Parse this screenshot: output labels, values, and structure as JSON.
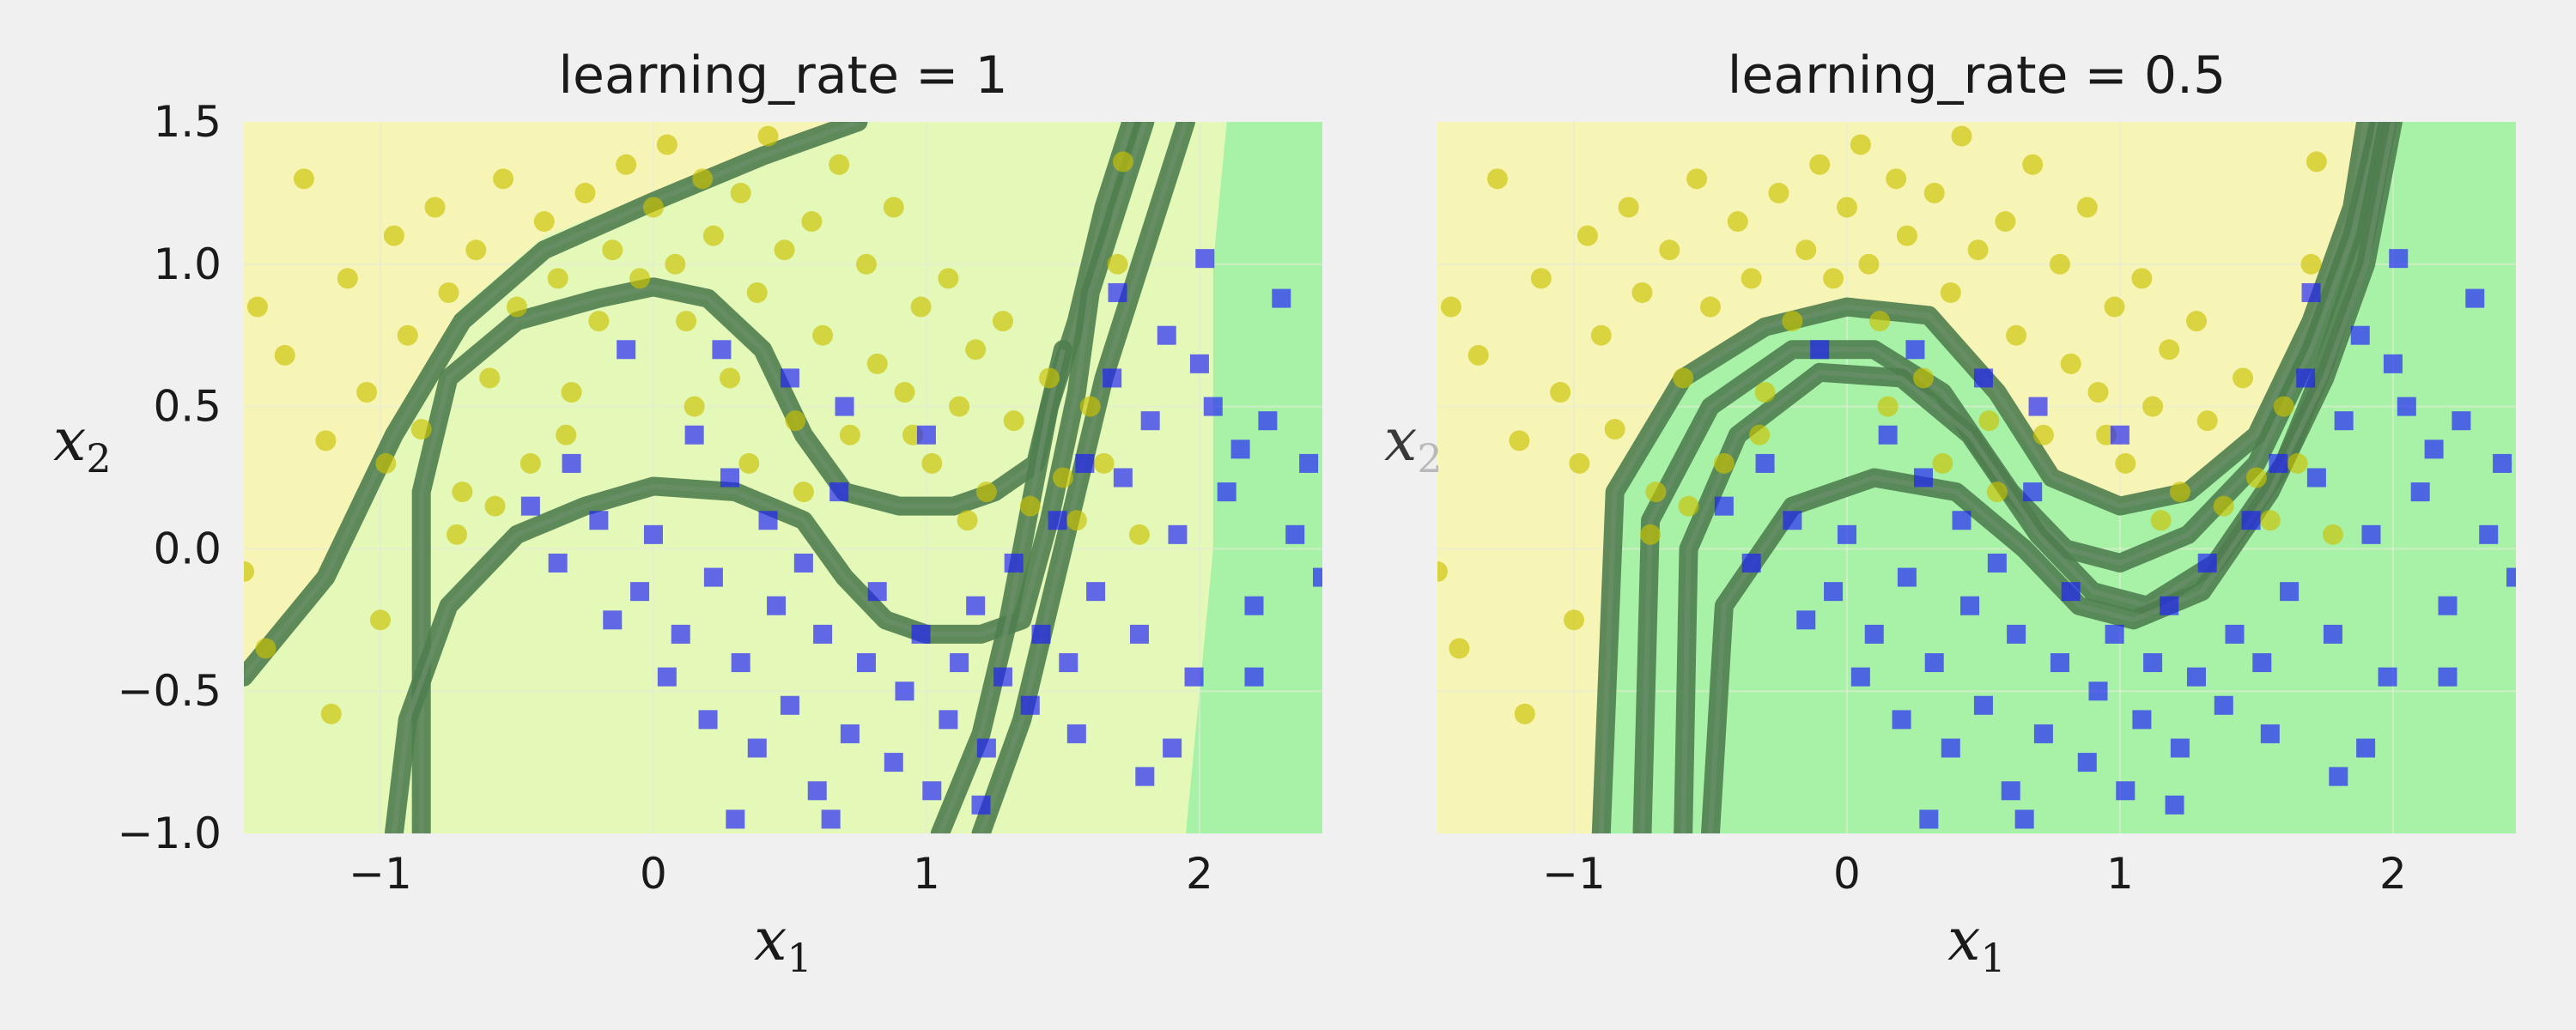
{
  "chart_data": [
    {
      "type": "scatter",
      "title": "learning_rate = 1",
      "xlabel": "x1",
      "ylabel": "x2",
      "xlim": [
        -1.5,
        2.45
      ],
      "ylim": [
        -1.0,
        1.5
      ],
      "xticks": [
        {
          "v": -1,
          "label": "−1"
        },
        {
          "v": 0,
          "label": "0"
        },
        {
          "v": 1,
          "label": "1"
        },
        {
          "v": 2,
          "label": "2"
        }
      ],
      "yticks": [
        {
          "v": 1.5,
          "label": "1.5"
        },
        {
          "v": 1.0,
          "label": "1.0"
        },
        {
          "v": 0.5,
          "label": "0.5"
        },
        {
          "v": 0.0,
          "label": "0.0"
        },
        {
          "v": -0.5,
          "label": "−0.5"
        },
        {
          "v": -1.0,
          "label": "−1.0"
        }
      ],
      "grid": true,
      "regions": [
        {
          "class": 0,
          "color": "#f7f5b6",
          "boundary": [
            [
              -1.5,
              -0.4
            ],
            [
              -1.2,
              -0.05
            ],
            [
              -0.95,
              0.45
            ],
            [
              -0.7,
              0.85
            ],
            [
              -0.4,
              1.1
            ],
            [
              0,
              1.25
            ],
            [
              0.4,
              1.4
            ],
            [
              0.7,
              1.5
            ]
          ]
        },
        {
          "class": 1,
          "color": "#a8f2a8",
          "boundary": [
            [
              1.95,
              -1.0
            ],
            [
              2.05,
              0.0
            ],
            [
              2.05,
              1.0
            ],
            [
              2.1,
              1.5
            ]
          ]
        }
      ],
      "contour_lines": [
        [
          [
            -1.5,
            -0.45
          ],
          [
            -1.2,
            -0.1
          ],
          [
            -0.95,
            0.4
          ],
          [
            -0.7,
            0.8
          ],
          [
            -0.4,
            1.05
          ],
          [
            0,
            1.22
          ],
          [
            0.4,
            1.38
          ],
          [
            0.75,
            1.5
          ]
        ],
        [
          [
            -0.85,
            -1.0
          ],
          [
            -0.85,
            0.2
          ],
          [
            -0.75,
            0.6
          ],
          [
            -0.5,
            0.8
          ],
          [
            -0.2,
            0.88
          ],
          [
            0,
            0.92
          ],
          [
            0.2,
            0.88
          ],
          [
            0.4,
            0.7
          ],
          [
            0.55,
            0.4
          ],
          [
            0.7,
            0.2
          ],
          [
            0.9,
            0.15
          ],
          [
            1.1,
            0.15
          ],
          [
            1.25,
            0.2
          ],
          [
            1.4,
            0.3
          ],
          [
            1.45,
            0.5
          ],
          [
            1.55,
            0.8
          ],
          [
            1.65,
            1.2
          ],
          [
            1.75,
            1.5
          ]
        ],
        [
          [
            -0.95,
            -1.0
          ],
          [
            -0.9,
            -0.6
          ],
          [
            -0.75,
            -0.2
          ],
          [
            -0.5,
            0.05
          ],
          [
            -0.25,
            0.15
          ],
          [
            0,
            0.22
          ],
          [
            0.3,
            0.2
          ],
          [
            0.55,
            0.1
          ],
          [
            0.7,
            -0.1
          ],
          [
            0.85,
            -0.25
          ],
          [
            1.0,
            -0.3
          ],
          [
            1.2,
            -0.3
          ],
          [
            1.35,
            -0.25
          ],
          [
            1.45,
            0.1
          ],
          [
            1.55,
            0.55
          ],
          [
            1.6,
            0.9
          ],
          [
            1.7,
            1.2
          ],
          [
            1.8,
            1.5
          ]
        ],
        [
          [
            1.2,
            -1.0
          ],
          [
            1.35,
            -0.6
          ],
          [
            1.45,
            -0.2
          ],
          [
            1.55,
            0.2
          ],
          [
            1.65,
            0.6
          ],
          [
            1.75,
            0.9
          ],
          [
            1.85,
            1.2
          ],
          [
            1.95,
            1.5
          ]
        ],
        [
          [
            1.05,
            -1.0
          ],
          [
            1.2,
            -0.65
          ],
          [
            1.3,
            -0.25
          ],
          [
            1.4,
            0.25
          ],
          [
            1.45,
            0.5
          ],
          [
            1.5,
            0.7
          ]
        ]
      ]
    },
    {
      "type": "scatter",
      "title": "learning_rate = 0.5",
      "xlabel": "x1",
      "ylabel": "x2",
      "xlim": [
        -1.5,
        2.45
      ],
      "ylim": [
        -1.0,
        1.5
      ],
      "xticks": [
        {
          "v": -1,
          "label": "−1"
        },
        {
          "v": 0,
          "label": "0"
        },
        {
          "v": 1,
          "label": "1"
        },
        {
          "v": 2,
          "label": "2"
        }
      ],
      "yticks": [],
      "grid": true,
      "regions": [
        {
          "class": 0,
          "color": "#f7f5b6",
          "boundary": [
            [
              -0.9,
              -1.0
            ],
            [
              -0.85,
              0.2
            ],
            [
              -0.6,
              0.6
            ],
            [
              -0.3,
              0.78
            ],
            [
              0,
              0.85
            ],
            [
              0.3,
              0.8
            ],
            [
              0.55,
              0.5
            ],
            [
              0.75,
              0.25
            ],
            [
              1.0,
              0.15
            ],
            [
              1.25,
              0.2
            ],
            [
              1.5,
              0.4
            ],
            [
              1.7,
              0.8
            ],
            [
              1.85,
              1.2
            ],
            [
              1.95,
              1.5
            ]
          ]
        },
        {
          "class": 1,
          "color": "#a8f2a8",
          "boundary": []
        }
      ],
      "contour_lines": [
        [
          [
            -0.9,
            -1.0
          ],
          [
            -0.85,
            0.2
          ],
          [
            -0.6,
            0.6
          ],
          [
            -0.3,
            0.78
          ],
          [
            0,
            0.85
          ],
          [
            0.3,
            0.82
          ],
          [
            0.55,
            0.55
          ],
          [
            0.75,
            0.25
          ],
          [
            1.0,
            0.15
          ],
          [
            1.25,
            0.2
          ],
          [
            1.5,
            0.4
          ],
          [
            1.7,
            0.8
          ],
          [
            1.85,
            1.2
          ],
          [
            1.9,
            1.5
          ]
        ],
        [
          [
            -0.75,
            -1.0
          ],
          [
            -0.72,
            0.1
          ],
          [
            -0.5,
            0.5
          ],
          [
            -0.2,
            0.7
          ],
          [
            0.1,
            0.7
          ],
          [
            0.35,
            0.55
          ],
          [
            0.6,
            0.2
          ],
          [
            0.8,
            0.0
          ],
          [
            1.0,
            -0.05
          ],
          [
            1.25,
            0.05
          ],
          [
            1.5,
            0.3
          ],
          [
            1.7,
            0.7
          ],
          [
            1.85,
            1.1
          ],
          [
            1.95,
            1.5
          ]
        ],
        [
          [
            -0.6,
            -1.0
          ],
          [
            -0.58,
            0.0
          ],
          [
            -0.4,
            0.4
          ],
          [
            -0.1,
            0.62
          ],
          [
            0.2,
            0.6
          ],
          [
            0.45,
            0.4
          ],
          [
            0.7,
            0.05
          ],
          [
            0.9,
            -0.15
          ],
          [
            1.1,
            -0.2
          ],
          [
            1.35,
            -0.05
          ],
          [
            1.6,
            0.3
          ],
          [
            1.75,
            0.65
          ],
          [
            1.9,
            1.1
          ],
          [
            1.98,
            1.5
          ]
        ],
        [
          [
            -0.5,
            -1.0
          ],
          [
            -0.45,
            -0.2
          ],
          [
            -0.2,
            0.15
          ],
          [
            0.1,
            0.25
          ],
          [
            0.4,
            0.2
          ],
          [
            0.65,
            0.0
          ],
          [
            0.85,
            -0.2
          ],
          [
            1.05,
            -0.25
          ],
          [
            1.3,
            -0.15
          ],
          [
            1.55,
            0.2
          ],
          [
            1.75,
            0.6
          ],
          [
            1.9,
            1.0
          ],
          [
            2.0,
            1.5
          ]
        ]
      ]
    }
  ],
  "scatter_points": {
    "class0": [
      [
        -1.45,
        0.85
      ],
      [
        -1.35,
        0.68
      ],
      [
        -1.28,
        1.3
      ],
      [
        -1.2,
        0.38
      ],
      [
        -1.18,
        -0.58
      ],
      [
        -1.12,
        0.95
      ],
      [
        -1.05,
        0.55
      ],
      [
        -1.0,
        -0.25
      ],
      [
        -0.95,
        1.1
      ],
      [
        -0.9,
        0.75
      ],
      [
        -0.85,
        0.42
      ],
      [
        -0.8,
        1.2
      ],
      [
        -0.75,
        0.9
      ],
      [
        -0.7,
        0.2
      ],
      [
        -0.65,
        1.05
      ],
      [
        -0.6,
        0.6
      ],
      [
        -0.55,
        1.3
      ],
      [
        -0.5,
        0.85
      ],
      [
        -0.45,
        0.3
      ],
      [
        -0.4,
        1.15
      ],
      [
        -0.35,
        0.95
      ],
      [
        -0.3,
        0.55
      ],
      [
        -0.25,
        1.25
      ],
      [
        -0.2,
        0.8
      ],
      [
        -0.15,
        1.05
      ],
      [
        -0.1,
        1.35
      ],
      [
        -0.05,
        0.95
      ],
      [
        0.0,
        1.2
      ],
      [
        0.05,
        1.42
      ],
      [
        0.08,
        1.0
      ],
      [
        0.12,
        0.8
      ],
      [
        0.18,
        1.3
      ],
      [
        0.22,
        1.1
      ],
      [
        0.28,
        0.6
      ],
      [
        0.32,
        1.25
      ],
      [
        0.38,
        0.9
      ],
      [
        0.42,
        1.45
      ],
      [
        0.48,
        1.05
      ],
      [
        0.52,
        0.45
      ],
      [
        0.58,
        1.15
      ],
      [
        0.62,
        0.75
      ],
      [
        0.68,
        1.35
      ],
      [
        0.72,
        0.4
      ],
      [
        0.78,
        1.0
      ],
      [
        0.82,
        0.65
      ],
      [
        0.88,
        1.2
      ],
      [
        0.92,
        0.55
      ],
      [
        0.98,
        0.85
      ],
      [
        1.02,
        0.3
      ],
      [
        1.08,
        0.95
      ],
      [
        1.12,
        0.5
      ],
      [
        1.18,
        0.7
      ],
      [
        1.22,
        0.2
      ],
      [
        1.28,
        0.8
      ],
      [
        1.32,
        0.45
      ],
      [
        1.38,
        0.15
      ],
      [
        1.45,
        0.6
      ],
      [
        1.5,
        0.25
      ],
      [
        1.55,
        0.1
      ],
      [
        1.6,
        0.5
      ],
      [
        1.65,
        0.3
      ],
      [
        1.7,
        1.0
      ],
      [
        1.72,
        1.36
      ],
      [
        1.78,
        0.05
      ],
      [
        -1.5,
        -0.08
      ],
      [
        -1.42,
        -0.35
      ],
      [
        -0.98,
        0.3
      ],
      [
        -0.72,
        0.05
      ],
      [
        -0.58,
        0.15
      ],
      [
        0.35,
        0.3
      ],
      [
        0.55,
        0.2
      ],
      [
        0.95,
        0.4
      ],
      [
        1.15,
        0.1
      ],
      [
        -0.32,
        0.4
      ],
      [
        0.15,
        0.5
      ]
    ],
    "class1": [
      [
        -0.45,
        0.15
      ],
      [
        -0.35,
        -0.05
      ],
      [
        -0.3,
        0.3
      ],
      [
        -0.2,
        0.1
      ],
      [
        -0.15,
        -0.25
      ],
      [
        -0.05,
        -0.15
      ],
      [
        0.0,
        0.05
      ],
      [
        0.05,
        -0.45
      ],
      [
        0.1,
        -0.3
      ],
      [
        0.15,
        0.4
      ],
      [
        0.2,
        -0.6
      ],
      [
        0.22,
        -0.1
      ],
      [
        0.28,
        0.25
      ],
      [
        0.32,
        -0.4
      ],
      [
        0.38,
        -0.7
      ],
      [
        0.42,
        0.1
      ],
      [
        0.45,
        -0.2
      ],
      [
        0.5,
        -0.55
      ],
      [
        0.55,
        -0.05
      ],
      [
        0.6,
        -0.85
      ],
      [
        0.62,
        -0.3
      ],
      [
        0.68,
        0.2
      ],
      [
        0.72,
        -0.65
      ],
      [
        0.78,
        -0.4
      ],
      [
        0.82,
        -0.15
      ],
      [
        0.88,
        -0.75
      ],
      [
        0.92,
        -0.5
      ],
      [
        0.98,
        -0.3
      ],
      [
        1.02,
        -0.85
      ],
      [
        1.08,
        -0.6
      ],
      [
        1.12,
        -0.4
      ],
      [
        1.18,
        -0.2
      ],
      [
        1.22,
        -0.7
      ],
      [
        1.28,
        -0.45
      ],
      [
        1.32,
        -0.05
      ],
      [
        1.38,
        -0.55
      ],
      [
        1.42,
        -0.3
      ],
      [
        1.48,
        0.1
      ],
      [
        1.52,
        -0.4
      ],
      [
        1.58,
        0.3
      ],
      [
        1.62,
        -0.15
      ],
      [
        1.68,
        0.6
      ],
      [
        1.72,
        0.25
      ],
      [
        1.78,
        -0.3
      ],
      [
        1.82,
        0.45
      ],
      [
        1.88,
        0.75
      ],
      [
        1.92,
        0.05
      ],
      [
        1.98,
        -0.45
      ],
      [
        2.02,
        1.02
      ],
      [
        2.05,
        0.5
      ],
      [
        2.1,
        0.2
      ],
      [
        2.15,
        0.35
      ],
      [
        2.2,
        -0.2
      ],
      [
        2.25,
        0.45
      ],
      [
        2.3,
        0.88
      ],
      [
        2.35,
        0.05
      ],
      [
        2.4,
        0.3
      ],
      [
        2.45,
        -0.1
      ],
      [
        1.55,
        -0.65
      ],
      [
        1.8,
        -0.8
      ],
      [
        0.5,
        0.6
      ],
      [
        0.25,
        0.7
      ],
      [
        -0.1,
        0.7
      ],
      [
        0.7,
        0.5
      ],
      [
        1.7,
        0.9
      ],
      [
        2.0,
        0.65
      ],
      [
        1.9,
        -0.7
      ],
      [
        2.2,
        -0.45
      ],
      [
        1.0,
        0.4
      ],
      [
        0.3,
        -0.95
      ],
      [
        0.65,
        -0.95
      ],
      [
        1.2,
        -0.9
      ]
    ]
  },
  "colors": {
    "class0_point": "#c9c200",
    "class1_point": "#1a1aff",
    "class0_region": "#f7f5b6",
    "class1_region": "#a8f2a8",
    "mid_region": "#e4f8b8",
    "contour": "#4f7d4f",
    "grid": "#e6ecd6"
  }
}
